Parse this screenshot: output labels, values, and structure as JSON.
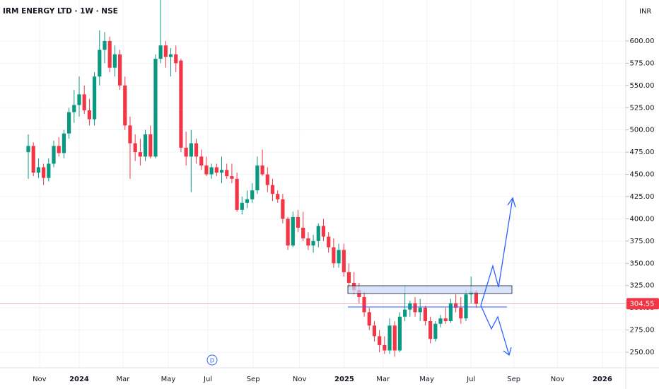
{
  "chart_data": {
    "type": "candlestick",
    "title": "IRM ENERGY LTD · 1W · NSE",
    "currency": "INR",
    "open": [
      475,
      482,
      452,
      458,
      446,
      462,
      482,
      474,
      496,
      520,
      528,
      540,
      522,
      512,
      560,
      590,
      600,
      570,
      585,
      550,
      505,
      485,
      475,
      470,
      495,
      470,
      580,
      595,
      582,
      585,
      578,
      480,
      470,
      485,
      470,
      460,
      450,
      458,
      452,
      455,
      448,
      445,
      410,
      418,
      422,
      432,
      460,
      450,
      438,
      428,
      422,
      400,
      370,
      402,
      390,
      378,
      370,
      375,
      392,
      380,
      368,
      350,
      365,
      340,
      328,
      320,
      312,
      295,
      280,
      268,
      258,
      252,
      280,
      252,
      290,
      298,
      305,
      295,
      300,
      285,
      265,
      282,
      288,
      285,
      305,
      300,
      288,
      315,
      318
    ],
    "high": [
      495,
      486,
      468,
      462,
      468,
      488,
      492,
      500,
      525,
      545,
      560,
      550,
      535,
      565,
      612,
      610,
      605,
      595,
      590,
      560,
      515,
      495,
      490,
      500,
      505,
      585,
      646,
      600,
      592,
      595,
      580,
      498,
      500,
      490,
      478,
      470,
      462,
      462,
      470,
      462,
      462,
      452,
      425,
      432,
      440,
      470,
      478,
      458,
      445,
      432,
      428,
      402,
      408,
      410,
      408,
      385,
      382,
      395,
      400,
      385,
      378,
      372,
      372,
      350,
      340,
      328,
      318,
      300,
      285,
      275,
      268,
      288,
      285,
      295,
      325,
      308,
      312,
      310,
      302,
      290,
      285,
      292,
      300,
      310,
      315,
      312,
      320,
      335,
      320
    ],
    "low": [
      445,
      448,
      446,
      438,
      442,
      458,
      470,
      468,
      490,
      508,
      515,
      518,
      505,
      505,
      550,
      575,
      565,
      560,
      545,
      500,
      445,
      465,
      460,
      465,
      468,
      468,
      575,
      570,
      560,
      565,
      475,
      460,
      430,
      462,
      455,
      448,
      445,
      448,
      440,
      445,
      440,
      408,
      405,
      412,
      418,
      428,
      448,
      430,
      420,
      418,
      395,
      365,
      368,
      385,
      375,
      365,
      362,
      368,
      375,
      362,
      345,
      345,
      335,
      322,
      315,
      305,
      290,
      275,
      262,
      250,
      248,
      248,
      245,
      250,
      285,
      290,
      290,
      285,
      280,
      260,
      262,
      278,
      282,
      283,
      295,
      282,
      285,
      305,
      300
    ],
    "close": [
      482,
      452,
      458,
      446,
      462,
      482,
      474,
      496,
      520,
      528,
      540,
      522,
      512,
      560,
      590,
      600,
      570,
      585,
      550,
      505,
      485,
      475,
      470,
      495,
      470,
      580,
      595,
      582,
      585,
      575,
      480,
      470,
      485,
      470,
      460,
      450,
      458,
      452,
      455,
      448,
      445,
      410,
      418,
      422,
      432,
      460,
      450,
      438,
      428,
      422,
      400,
      370,
      402,
      390,
      378,
      370,
      375,
      392,
      380,
      368,
      350,
      365,
      340,
      328,
      320,
      312,
      295,
      280,
      268,
      258,
      252,
      280,
      252,
      290,
      298,
      305,
      295,
      300,
      285,
      265,
      282,
      288,
      285,
      305,
      300,
      288,
      315,
      318,
      304.55
    ],
    "up_color": "#089981",
    "down_color": "#f23645",
    "ylim": [
      232.5,
      646.1
    ],
    "yticks": [
      {
        "value": 250,
        "label": "250.00"
      },
      {
        "value": 275,
        "label": "275.00"
      },
      {
        "value": 300,
        "label": "300.00"
      },
      {
        "value": 325,
        "label": "325.00"
      },
      {
        "value": 350,
        "label": "350.00"
      },
      {
        "value": 375,
        "label": "375.00"
      },
      {
        "value": 400,
        "label": "400.00"
      },
      {
        "value": 425,
        "label": "425.00"
      },
      {
        "value": 450,
        "label": "450.00"
      },
      {
        "value": 475,
        "label": "475.00"
      },
      {
        "value": 500,
        "label": "500.00"
      },
      {
        "value": 525,
        "label": "525.00"
      },
      {
        "value": 550,
        "label": "550.00"
      },
      {
        "value": 575,
        "label": "575.00"
      },
      {
        "value": 600,
        "label": "600.00"
      }
    ],
    "xlim": [
      -5.56,
      117.4
    ],
    "xticks": [
      {
        "value": 2.2,
        "label": "Nov"
      },
      {
        "value": 10,
        "label": "2024"
      },
      {
        "value": 18.6,
        "label": "Mar"
      },
      {
        "value": 27.5,
        "label": "May"
      },
      {
        "value": 35.3,
        "label": "Jul"
      },
      {
        "value": 44.2,
        "label": "Sep"
      },
      {
        "value": 53.3,
        "label": "Nov"
      },
      {
        "value": 62.1,
        "label": "2025"
      },
      {
        "value": 69.7,
        "label": "Mar"
      },
      {
        "value": 78.3,
        "label": "May"
      },
      {
        "value": 87,
        "label": "Jul"
      },
      {
        "value": 95.4,
        "label": "Sep"
      },
      {
        "value": 104,
        "label": "Nov"
      },
      {
        "value": 112.8,
        "label": "2026"
      }
    ],
    "event_marker": "D",
    "grid": true
  }
}
